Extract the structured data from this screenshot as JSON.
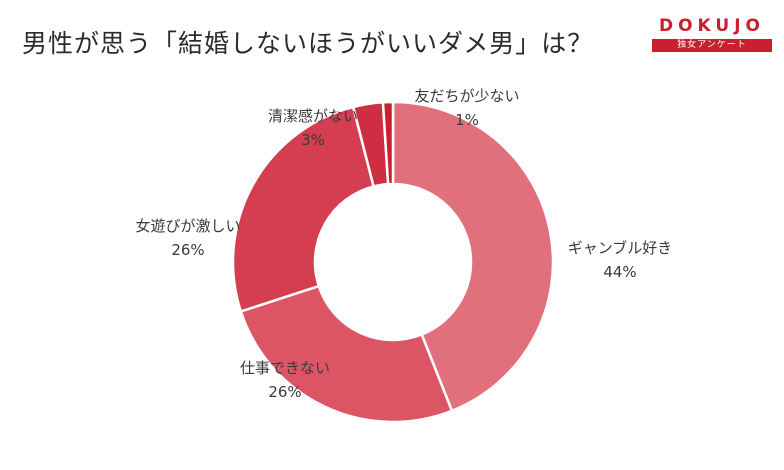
{
  "title": "男性が思う「結婚しないほうがいいダメ男」は？",
  "logo": {
    "word": "DOKUJO",
    "tagline": "独女アンケート",
    "color": "#c8202f"
  },
  "chart_data": {
    "type": "pie",
    "title": "男性が思う「結婚しないほうがいいダメ男」は？",
    "donut": true,
    "slices": [
      {
        "label": "ギャンブル好き",
        "value": 44,
        "value_label": "44%",
        "color": "#e0707b"
      },
      {
        "label": "仕事できない",
        "value": 26,
        "value_label": "26%",
        "color": "#dc5565"
      },
      {
        "label": "女遊びが激しい",
        "value": 26,
        "value_label": "26%",
        "color": "#d43e50"
      },
      {
        "label": "清潔感がない",
        "value": 3,
        "value_label": "3%",
        "color": "#cf2d42"
      },
      {
        "label": "友だちが少ない",
        "value": 1,
        "value_label": "1%",
        "color": "#c8202f"
      }
    ]
  }
}
